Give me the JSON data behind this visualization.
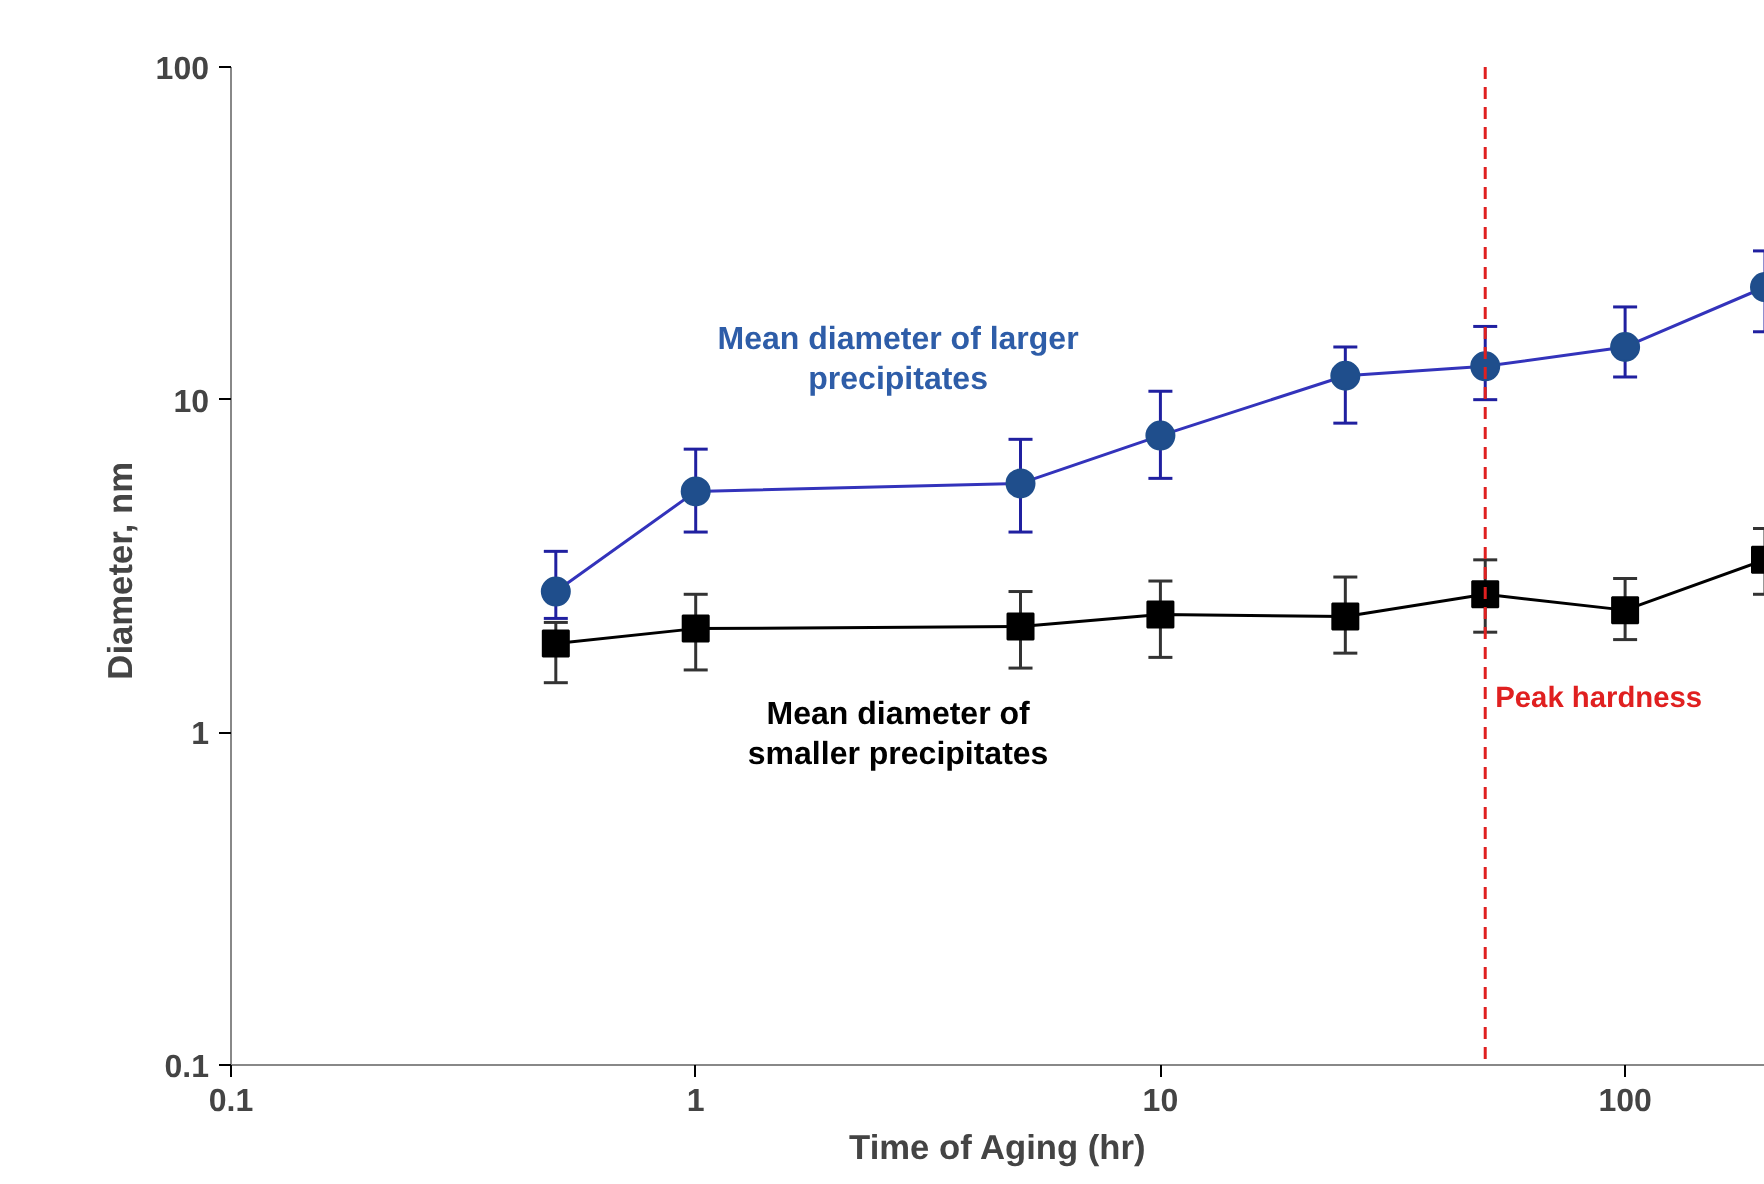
{
  "chart_data": {
    "type": "line",
    "xlabel": "Time of Aging (hr)",
    "ylabel": "Diameter,  nm",
    "log": "xy",
    "x": [
      0.5,
      1,
      5,
      10,
      25,
      50,
      100,
      200
    ],
    "xlim": [
      0.1,
      200
    ],
    "ylim": [
      0.1,
      100
    ],
    "xticks": [
      0.1,
      1,
      10,
      100
    ],
    "yticks": [
      0.1,
      1,
      10,
      100
    ],
    "grid": false,
    "series": [
      {
        "name": "Mean diameter of larger\nprecipitates",
        "color": "#1f4e8c",
        "marker": "circle",
        "values": [
          2.65,
          5.3,
          5.6,
          7.8,
          11.8,
          12.6,
          14.4,
          21.8
        ],
        "errors": [
          [
            2.2,
            3.5
          ],
          [
            4.0,
            7.1
          ],
          [
            4.0,
            7.6
          ],
          [
            5.8,
            10.6
          ],
          [
            8.5,
            14.4
          ],
          [
            10,
            16.6
          ],
          [
            11.7,
            19
          ],
          [
            16,
            28
          ]
        ]
      },
      {
        "name": "Mean diameter of\nsmaller precipitates",
        "color": "#000000",
        "marker": "square",
        "values": [
          1.85,
          2.05,
          2.08,
          2.26,
          2.23,
          2.6,
          2.33,
          3.3
        ],
        "errors": [
          [
            1.41,
            2.14
          ],
          [
            1.54,
            2.6
          ],
          [
            1.56,
            2.65
          ],
          [
            1.68,
            2.85
          ],
          [
            1.73,
            2.93
          ],
          [
            2.0,
            3.3
          ],
          [
            1.9,
            2.9
          ],
          [
            2.6,
            4.1
          ]
        ]
      }
    ],
    "ref_lines": [
      {
        "axis": "x",
        "value": 50,
        "label": "Peak hardness",
        "color": "#e02020",
        "line_style": "dashed"
      }
    ]
  }
}
